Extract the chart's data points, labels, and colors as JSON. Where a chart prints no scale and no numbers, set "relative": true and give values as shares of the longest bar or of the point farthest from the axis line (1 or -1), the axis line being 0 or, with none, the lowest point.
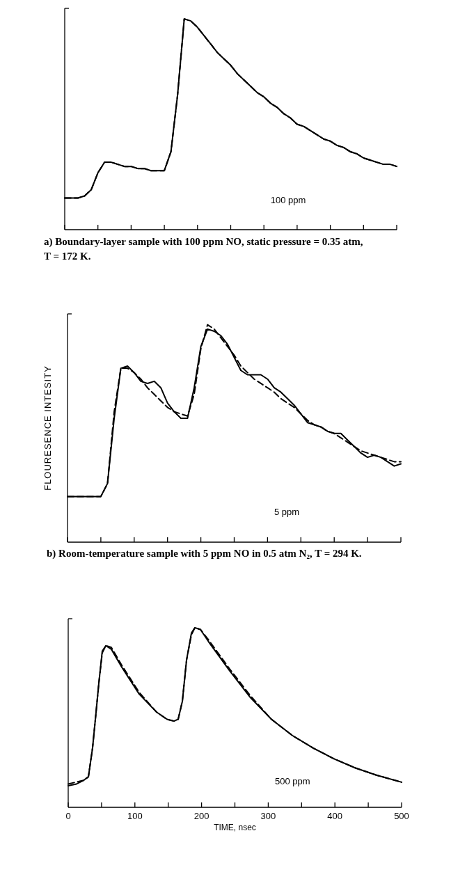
{
  "chart_data": [
    {
      "type": "line",
      "relative": true,
      "title": "a) Boundary-layer sample with 100 ppm NO, static pressure = 0.35 atm, T = 172 K.",
      "annotations": [
        "100 ppm"
      ],
      "categories": [
        null,
        null,
        null,
        null,
        null,
        null,
        null,
        null,
        null,
        null,
        null,
        null,
        null,
        null,
        null,
        null,
        null,
        null,
        null,
        null,
        null,
        null,
        null,
        null,
        null,
        null,
        null,
        null,
        null,
        null,
        null,
        null,
        null,
        null,
        null,
        null,
        null,
        null,
        null,
        null,
        null,
        null,
        null,
        null,
        null,
        null,
        null,
        null,
        null,
        null,
        null
      ],
      "series": [
        {
          "color": "#000000",
          "line_style": "solid",
          "values": [
            0.15,
            0.15,
            0.15,
            0.16,
            0.19,
            0.27,
            0.32,
            0.32,
            0.31,
            0.3,
            0.3,
            0.29,
            0.29,
            0.28,
            0.28,
            0.28,
            0.37,
            0.64,
            1,
            0.99,
            0.96,
            0.92,
            0.88,
            0.84,
            0.81,
            0.78,
            0.74,
            0.71,
            0.68,
            0.65,
            0.63,
            0.6,
            0.58,
            0.55,
            0.53,
            0.5,
            0.49,
            0.47,
            0.45,
            0.43,
            0.42,
            0.4,
            0.39,
            0.37,
            0.36,
            0.34,
            0.33,
            0.32,
            0.31,
            0.31,
            0.3
          ]
        },
        {
          "color": "#000000",
          "line_style": "dashed",
          "values": [
            0.15,
            0.15,
            0.15,
            0.16,
            0.19,
            0.27,
            0.32,
            0.32,
            0.31,
            0.3,
            0.3,
            0.29,
            0.29,
            0.28,
            0.28,
            0.28,
            0.37,
            0.64,
            1,
            0.99,
            0.96,
            0.92,
            0.88,
            0.84,
            0.81,
            0.78,
            0.74,
            0.71,
            0.68,
            0.65,
            0.63,
            0.6,
            0.58,
            0.55,
            0.53,
            0.5,
            0.49,
            0.47,
            0.45,
            0.43,
            0.42,
            0.4,
            0.39,
            0.37,
            0.36,
            0.34,
            0.33,
            0.32,
            0.31,
            0.31,
            0.3
          ]
        }
      ]
    },
    {
      "type": "line",
      "relative": true,
      "title": "b) Room-temperature sample with 5 ppm NO in 0.5 atm N₂, T = 294 K.",
      "ylabel": "FLOURESENCE INTESITY",
      "annotations": [
        "5 ppm"
      ],
      "categories": [
        null,
        null,
        null,
        null,
        null,
        null,
        null,
        null,
        null,
        null,
        null,
        null,
        null,
        null,
        null,
        null,
        null,
        null,
        null,
        null,
        null,
        null,
        null,
        null,
        null,
        null,
        null,
        null,
        null,
        null,
        null,
        null,
        null,
        null,
        null,
        null,
        null,
        null,
        null,
        null,
        null,
        null,
        null,
        null,
        null,
        null,
        null,
        null,
        null,
        null,
        null
      ],
      "series": [
        {
          "color": "#000000",
          "line_style": "solid",
          "values": [
            0.21,
            0.21,
            0.21,
            0.21,
            0.21,
            0.21,
            0.27,
            0.57,
            0.8,
            0.81,
            0.78,
            0.74,
            0.73,
            0.74,
            0.71,
            0.64,
            0.6,
            0.57,
            0.57,
            0.71,
            0.9,
            0.98,
            0.97,
            0.95,
            0.91,
            0.85,
            0.79,
            0.77,
            0.77,
            0.77,
            0.75,
            0.71,
            0.69,
            0.66,
            0.63,
            0.59,
            0.55,
            0.54,
            0.53,
            0.51,
            0.5,
            0.5,
            0.47,
            0.44,
            0.41,
            0.39,
            0.4,
            0.39,
            0.37,
            0.35,
            0.36
          ]
        },
        {
          "color": "#000000",
          "line_style": "dashed",
          "values": [
            0.21,
            0.21,
            0.21,
            0.21,
            0.21,
            0.21,
            0.27,
            0.6,
            0.8,
            0.8,
            0.78,
            0.75,
            0.71,
            0.68,
            0.65,
            0.62,
            0.6,
            0.59,
            0.58,
            0.68,
            0.89,
            1,
            0.98,
            0.94,
            0.9,
            0.86,
            0.81,
            0.78,
            0.75,
            0.73,
            0.71,
            0.69,
            0.66,
            0.64,
            0.62,
            0.59,
            0.56,
            0.54,
            0.53,
            0.51,
            0.5,
            0.48,
            0.46,
            0.44,
            0.42,
            0.41,
            0.4,
            0.39,
            0.38,
            0.37,
            0.37
          ]
        }
      ]
    },
    {
      "type": "line",
      "relative": true,
      "xlabel": "TIME, nsec",
      "annotations": [
        "500 ppm"
      ],
      "xlim": [
        0,
        500
      ],
      "xticks": [
        0,
        {
          "value": 50,
          "label": null
        },
        100,
        {
          "value": 150,
          "label": null
        },
        200,
        {
          "value": 250,
          "label": null
        },
        300,
        {
          "value": 350,
          "label": null
        },
        400,
        {
          "value": 450,
          "label": null
        },
        500
      ],
      "tick_labels": "x",
      "series": [
        {
          "color": "#000000",
          "line_style": "solid",
          "x": [
            0,
            12.5,
            23,
            30.3,
            36.5,
            41.8,
            45.9,
            51.1,
            56.4,
            64.7,
            80.4,
            106.5,
            132.6,
            148.2,
            158.7,
            164.9,
            171.2,
            177.5,
            184.8,
            190,
            198.3,
            210.9,
            242.2,
            273.5,
            304.8,
            336.1,
            367.4,
            398.7,
            430.1,
            461.4,
            500
          ],
          "values": [
            0.12,
            0.13,
            0.15,
            0.17,
            0.33,
            0.53,
            0.69,
            0.87,
            0.9,
            0.88,
            0.78,
            0.63,
            0.53,
            0.49,
            0.48,
            0.49,
            0.59,
            0.82,
            0.97,
            1,
            0.99,
            0.92,
            0.76,
            0.61,
            0.49,
            0.4,
            0.33,
            0.27,
            0.22,
            0.18,
            0.14
          ]
        },
        {
          "color": "#000000",
          "line_style": "dashed",
          "x": [
            0,
            23,
            30.3,
            36.5,
            41.8,
            45.9,
            51.1,
            56.4,
            64.7,
            80.4,
            106.5,
            132.6,
            148.2,
            158.7,
            164.9,
            171.2,
            177.5,
            184.8,
            190,
            198.3,
            210.9,
            242.2,
            273.5,
            304.8,
            336.1,
            367.4,
            398.7,
            430.1,
            461.4,
            500
          ],
          "values": [
            0.13,
            0.15,
            0.17,
            0.33,
            0.53,
            0.69,
            0.86,
            0.9,
            0.89,
            0.79,
            0.64,
            0.53,
            0.49,
            0.48,
            0.49,
            0.59,
            0.82,
            0.96,
            1,
            0.99,
            0.93,
            0.77,
            0.62,
            0.49,
            0.4,
            0.33,
            0.27,
            0.22,
            0.18,
            0.14
          ]
        }
      ]
    }
  ]
}
